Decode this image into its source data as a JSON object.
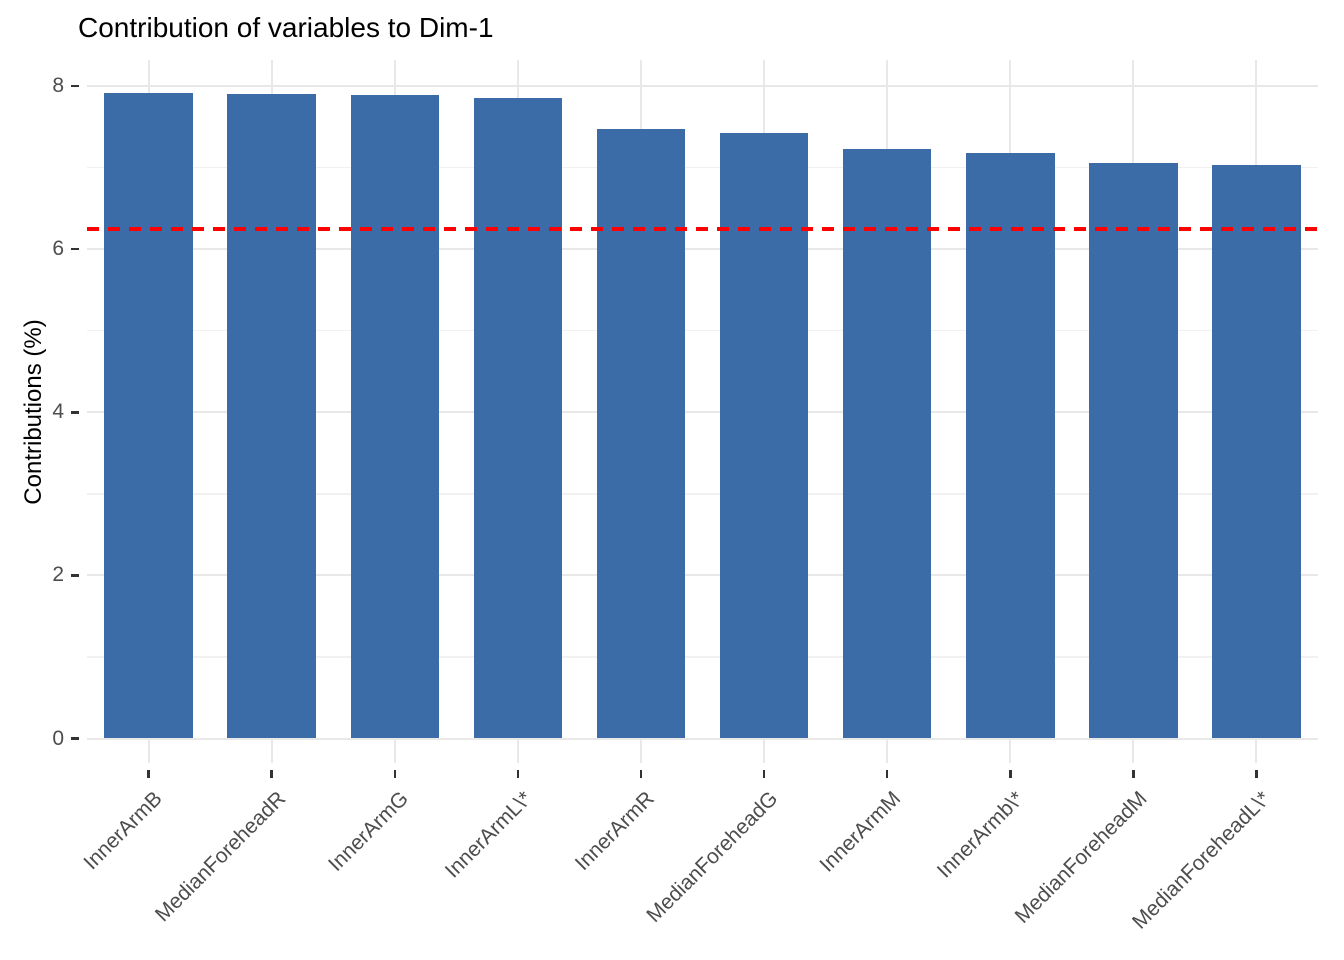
{
  "chart_data": {
    "type": "bar",
    "title": "Contribution of variables to Dim-1",
    "xlabel": "",
    "ylabel": "Contributions (%)",
    "categories": [
      "InnerArmB",
      "MedianForeheadR",
      "InnerArmG",
      "InnerArmL\\*",
      "InnerArmR",
      "MedianForeheadG",
      "InnerArmM",
      "InnerArmb\\*",
      "MedianForeheadM",
      "MedianForeheadL\\*"
    ],
    "values": [
      7.91,
      7.9,
      7.89,
      7.85,
      7.48,
      7.42,
      7.23,
      7.18,
      7.06,
      7.03
    ],
    "yticks": [
      0,
      2,
      4,
      6,
      8
    ],
    "minor_yticks": [
      1,
      3,
      5,
      7
    ],
    "ylim": [
      0,
      8.32
    ],
    "grid": true,
    "legend_position": "none",
    "x_label_rotation_deg": 45,
    "reference_line": {
      "value": 6.25,
      "color": "#ff0000",
      "style": "dashed"
    },
    "bar_color": "#3b6ca8"
  }
}
